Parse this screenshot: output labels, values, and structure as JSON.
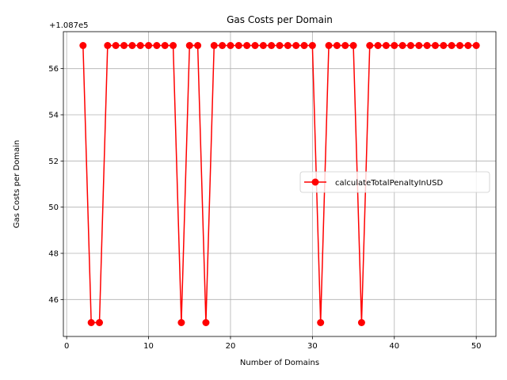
{
  "chart_data": {
    "type": "line",
    "title": "Gas Costs per Domain",
    "xlabel": "Number of Domains",
    "ylabel": "Gas Costs per Domain",
    "offset_label": "+1.087e5",
    "offset_value": 108700,
    "xlim": [
      -0.4,
      52.4
    ],
    "ylim": [
      44.4,
      57.6
    ],
    "xticks": [
      0,
      10,
      20,
      30,
      40,
      50
    ],
    "yticks": [
      46,
      48,
      50,
      52,
      54,
      56
    ],
    "grid": true,
    "legend_position": "center-right",
    "series": [
      {
        "name": "calculateTotalPenaltyInUSD",
        "color": "#ff0000",
        "marker": "circle",
        "x": [
          2,
          3,
          4,
          5,
          6,
          7,
          8,
          9,
          10,
          11,
          12,
          13,
          14,
          15,
          16,
          17,
          18,
          19,
          20,
          21,
          22,
          23,
          24,
          25,
          26,
          27,
          28,
          29,
          30,
          31,
          32,
          33,
          34,
          35,
          36,
          37,
          38,
          39,
          40,
          41,
          42,
          43,
          44,
          45,
          46,
          47,
          48,
          49,
          50
        ],
        "y": [
          57,
          45,
          45,
          57,
          57,
          57,
          57,
          57,
          57,
          57,
          57,
          57,
          45,
          57,
          57,
          45,
          57,
          57,
          57,
          57,
          57,
          57,
          57,
          57,
          57,
          57,
          57,
          57,
          57,
          45,
          57,
          57,
          57,
          57,
          45,
          57,
          57,
          57,
          57,
          57,
          57,
          57,
          57,
          57,
          57,
          57,
          57,
          57,
          57
        ]
      }
    ]
  }
}
